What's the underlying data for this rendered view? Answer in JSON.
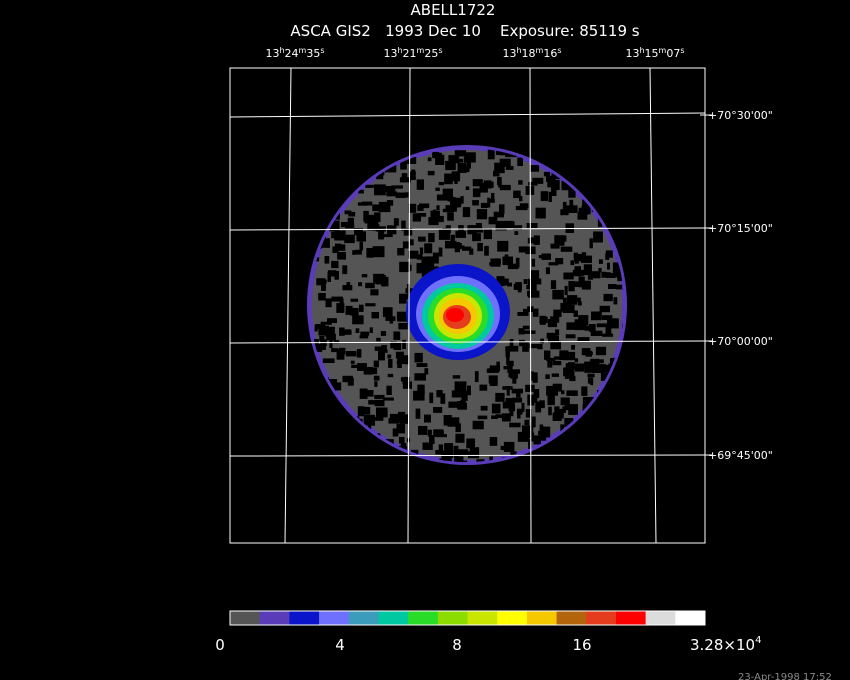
{
  "header": {
    "title": "ABELL1722",
    "subtitle": "ASCA GIS2   1993 Dec 10    Exposure: 85119 s"
  },
  "ra_labels": [
    [
      "13",
      "h",
      "24",
      "m",
      "35",
      "s"
    ],
    [
      "13",
      "h",
      "21",
      "m",
      "25",
      "s"
    ],
    [
      "13",
      "h",
      "18",
      "m",
      "16",
      "s"
    ],
    [
      "13",
      "h",
      "15",
      "m",
      "07",
      "s"
    ]
  ],
  "dec_labels": [
    "+70°30'00\"",
    "+70°15'00\"",
    "+70°00'00\"",
    "+69°45'00\""
  ],
  "colorbar": {
    "colors": [
      "#555555",
      "#5a3cb9",
      "#0a14c8",
      "#7070ff",
      "#3c9cbc",
      "#00c8a0",
      "#28dc28",
      "#8cdc00",
      "#c8e600",
      "#ffff00",
      "#f5c800",
      "#b4640a",
      "#e63c1e",
      "#ff0000",
      "#dcdcdc",
      "#ffffff"
    ],
    "labels": [
      "0",
      "4",
      "8",
      "16"
    ],
    "max_label": {
      "mantissa": "3.28×10",
      "exponent": "4"
    }
  },
  "footer": "23-Apr-1998 17:52"
}
